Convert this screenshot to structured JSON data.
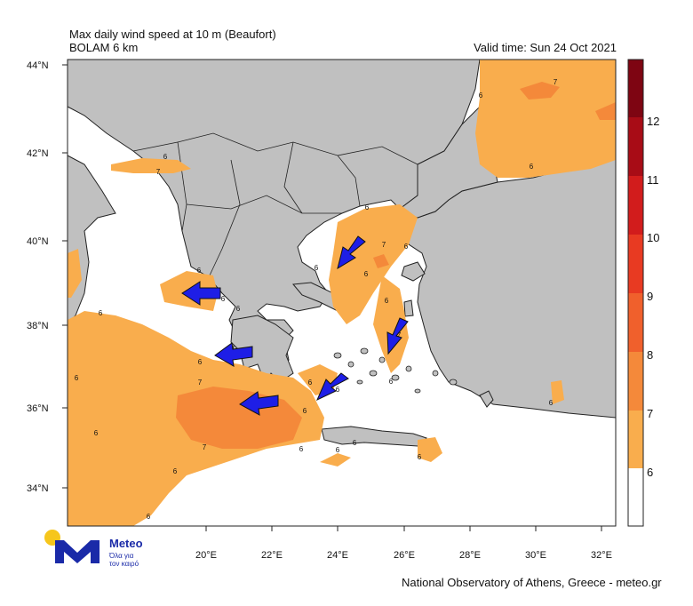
{
  "header": {
    "title": "Max daily wind speed at 10 m (Beaufort)",
    "model": "BOLAM 6 km",
    "valid_time": "Valid time: Sun 24 Oct 2021"
  },
  "footer": "National Observatory of Athens, Greece - meteo.gr",
  "logo": {
    "brand": "Meteo",
    "tagline_1": "Όλα για",
    "tagline_2": "τον καιρό"
  },
  "lat_labels": [
    "44°N",
    "42°N",
    "40°N",
    "38°N",
    "36°N",
    "34°N"
  ],
  "lon_labels": [
    "20°E",
    "22°E",
    "24°E",
    "26°E",
    "28°E",
    "30°E",
    "32°E"
  ],
  "colorbar": {
    "levels": [
      "6",
      "7",
      "8",
      "9",
      "10",
      "11",
      "12"
    ],
    "colors": [
      "#ffffff",
      "#f9ad4d",
      "#f4893a",
      "#f0602c",
      "#e83a22",
      "#d21c1c",
      "#a80c16",
      "#7e0512"
    ]
  },
  "contour_labels": [
    "6",
    "7",
    "6",
    "7",
    "6",
    "6",
    "7",
    "6",
    "6",
    "6",
    "6",
    "6",
    "7",
    "6",
    "7",
    "6",
    "6",
    "6",
    "6",
    "6",
    "6",
    "7",
    "6",
    "6",
    "6",
    "6",
    "6",
    "6",
    "6",
    "6",
    "6",
    "6"
  ],
  "arrows": [
    {
      "name": "arrow-ionian-north",
      "from": [
        19.6,
        38.8
      ],
      "dir": "W"
    },
    {
      "name": "arrow-ionian-mid",
      "from": [
        20.4,
        37.3
      ],
      "dir": "W"
    },
    {
      "name": "arrow-south-peloponnese",
      "from": [
        21.9,
        36.1
      ],
      "dir": "W"
    },
    {
      "name": "arrow-north-aegean",
      "from": [
        24.3,
        39.9
      ],
      "dir": "SW"
    },
    {
      "name": "arrow-east-aegean",
      "from": [
        25.9,
        37.9
      ],
      "dir": "SW"
    },
    {
      "name": "arrow-cyclades",
      "from": [
        23.9,
        36.8
      ],
      "dir": "SW"
    }
  ],
  "colors": {
    "land": "#c0c0c0",
    "sea": "#ffffff",
    "border": "#222222",
    "arrow": "#1e1ee6",
    "field7": "#f9ad4d",
    "field8": "#f4893a"
  }
}
